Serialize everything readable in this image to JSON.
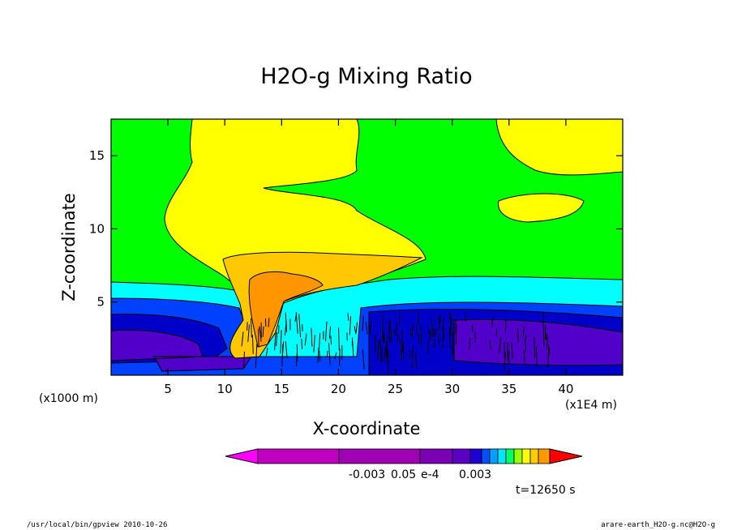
{
  "chart_data": {
    "type": "heatmap",
    "title": "H2O-g Mixing Ratio",
    "xlabel": "X-coordinate",
    "ylabel": "Z-coordinate",
    "x_unit_left": "(x1000 m)",
    "x_unit_right": "(x1E4 m)",
    "x_ticks": [
      5,
      10,
      15,
      20,
      25,
      30,
      35,
      40
    ],
    "y_ticks": [
      5,
      10,
      15
    ],
    "xlim": [
      0,
      45
    ],
    "ylim": [
      0,
      17.5
    ],
    "colorbar": {
      "labels": [
        "-0.003",
        "0.003"
      ],
      "overlap_labels": [
        "0.05",
        "e-4"
      ],
      "colors": [
        "#ff00ff",
        "#c000c0",
        "#a000b4",
        "#7a00b4",
        "#5a00c0",
        "#1e00d2",
        "#0050ff",
        "#00a0ff",
        "#00e6ff",
        "#00ff64",
        "#96ff00",
        "#ffff00",
        "#ffcc00",
        "#ff9900",
        "#ff0000"
      ]
    },
    "time_label": "t=12650 s",
    "regions": [
      {
        "name": "green-background",
        "color": "#00ff00"
      },
      {
        "name": "yellow-anvil",
        "color": "#ffff00"
      },
      {
        "name": "gold-plume",
        "color": "#ffc800"
      },
      {
        "name": "orange-core",
        "color": "#ff9600"
      },
      {
        "name": "cyan-layer",
        "color": "#00ffff"
      },
      {
        "name": "blue-layer",
        "color": "#0040ff"
      },
      {
        "name": "navy-layer",
        "color": "#0000c8"
      },
      {
        "name": "purple-layer",
        "color": "#5000c8"
      }
    ]
  },
  "footer": {
    "left": "/usr/local/bin/gpview  2010-10-26",
    "right": "arare-earth_H2O-g.nc@H2O-g"
  }
}
